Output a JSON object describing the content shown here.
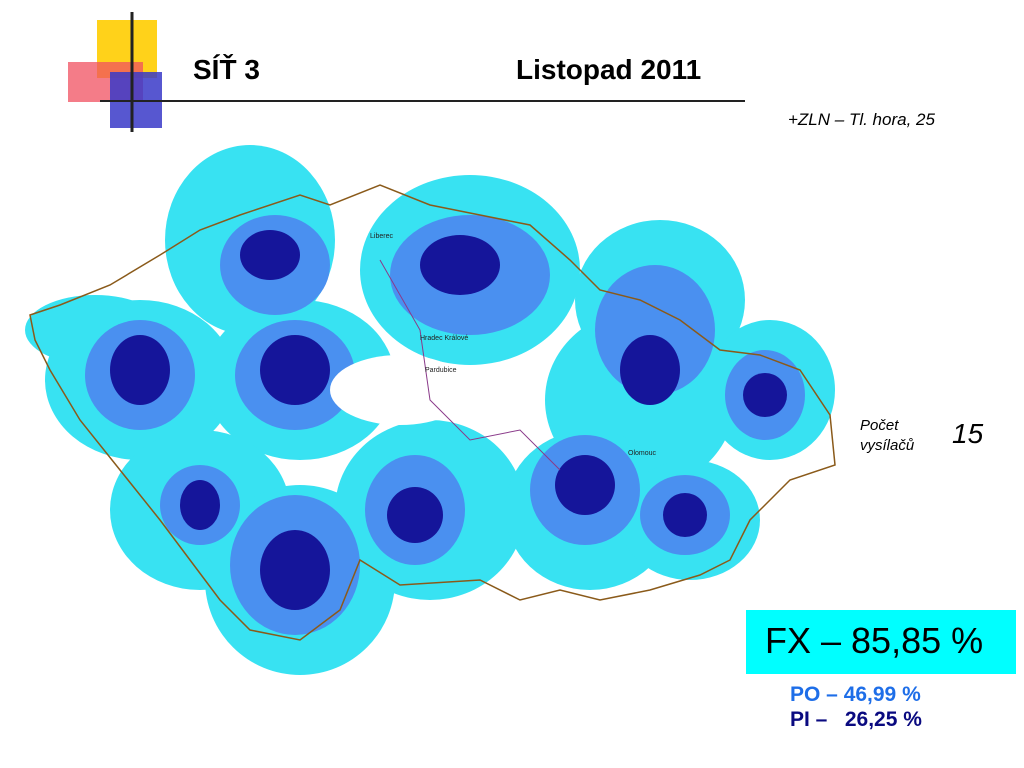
{
  "header": {
    "title": "SÍŤ 3",
    "date": "Listopad 2011",
    "site": "+ZLN – Tl. hora, 25"
  },
  "map": {
    "cities": [
      "Liberec",
      "Hradec Králové",
      "Pardubice",
      "Olomouc"
    ]
  },
  "stats": {
    "count_label": "Počet vysílačů",
    "count": "15",
    "fx": "FX – 85,85 %",
    "po": "PO – 46,99 %",
    "pi": "PI –   26,25 %"
  }
}
